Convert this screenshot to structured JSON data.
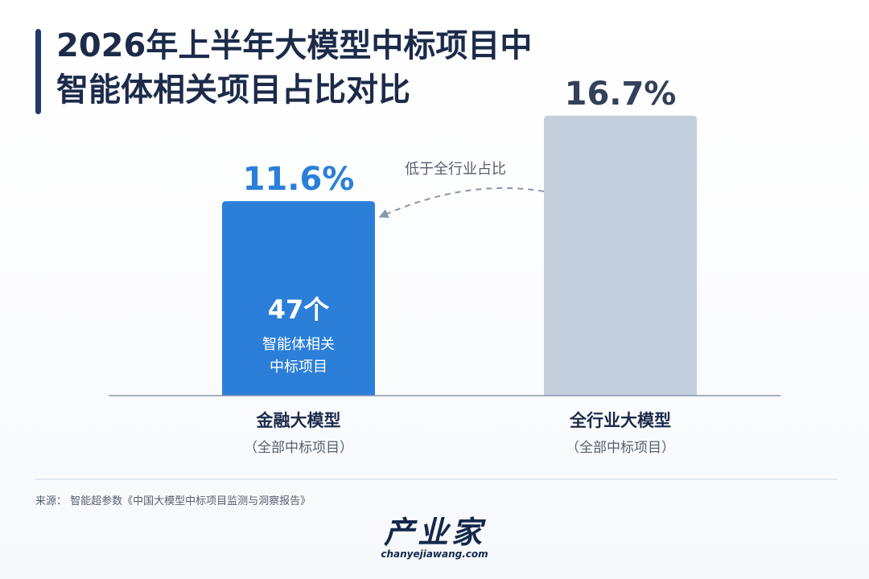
{
  "title": {
    "line1": "2026年上半年大模型中标项目中",
    "line2": "智能体相关项目占比对比"
  },
  "chart_data": {
    "type": "bar",
    "categories": [
      "金融大模型",
      "全行业大模型"
    ],
    "category_sublabels": [
      "（全部中标项目）",
      "（全部中标项目）"
    ],
    "values": [
      11.6,
      16.7
    ],
    "value_labels": [
      "11.6%",
      "16.7%"
    ],
    "bar_colors": [
      "#2b7fd9",
      "#c3cedc"
    ],
    "value_label_colors": [
      "#2b7fd9",
      "#34405a"
    ],
    "inner_label": {
      "count": "47个",
      "line1": "智能体相关",
      "line2": "中标项目"
    },
    "annotation": "低于全行业占比",
    "ylim": [
      0,
      20
    ]
  },
  "source": "来源：  智能超参数《中国大模型中标项目监测与洞察报告》",
  "logo": {
    "name": "产业家",
    "url": "chanyejiawang.com"
  },
  "colors": {
    "title": "#1d2b4a",
    "accent_bar": "#1f3a6b",
    "axis": "#8a97ab",
    "divider": "#c9d6e6"
  }
}
